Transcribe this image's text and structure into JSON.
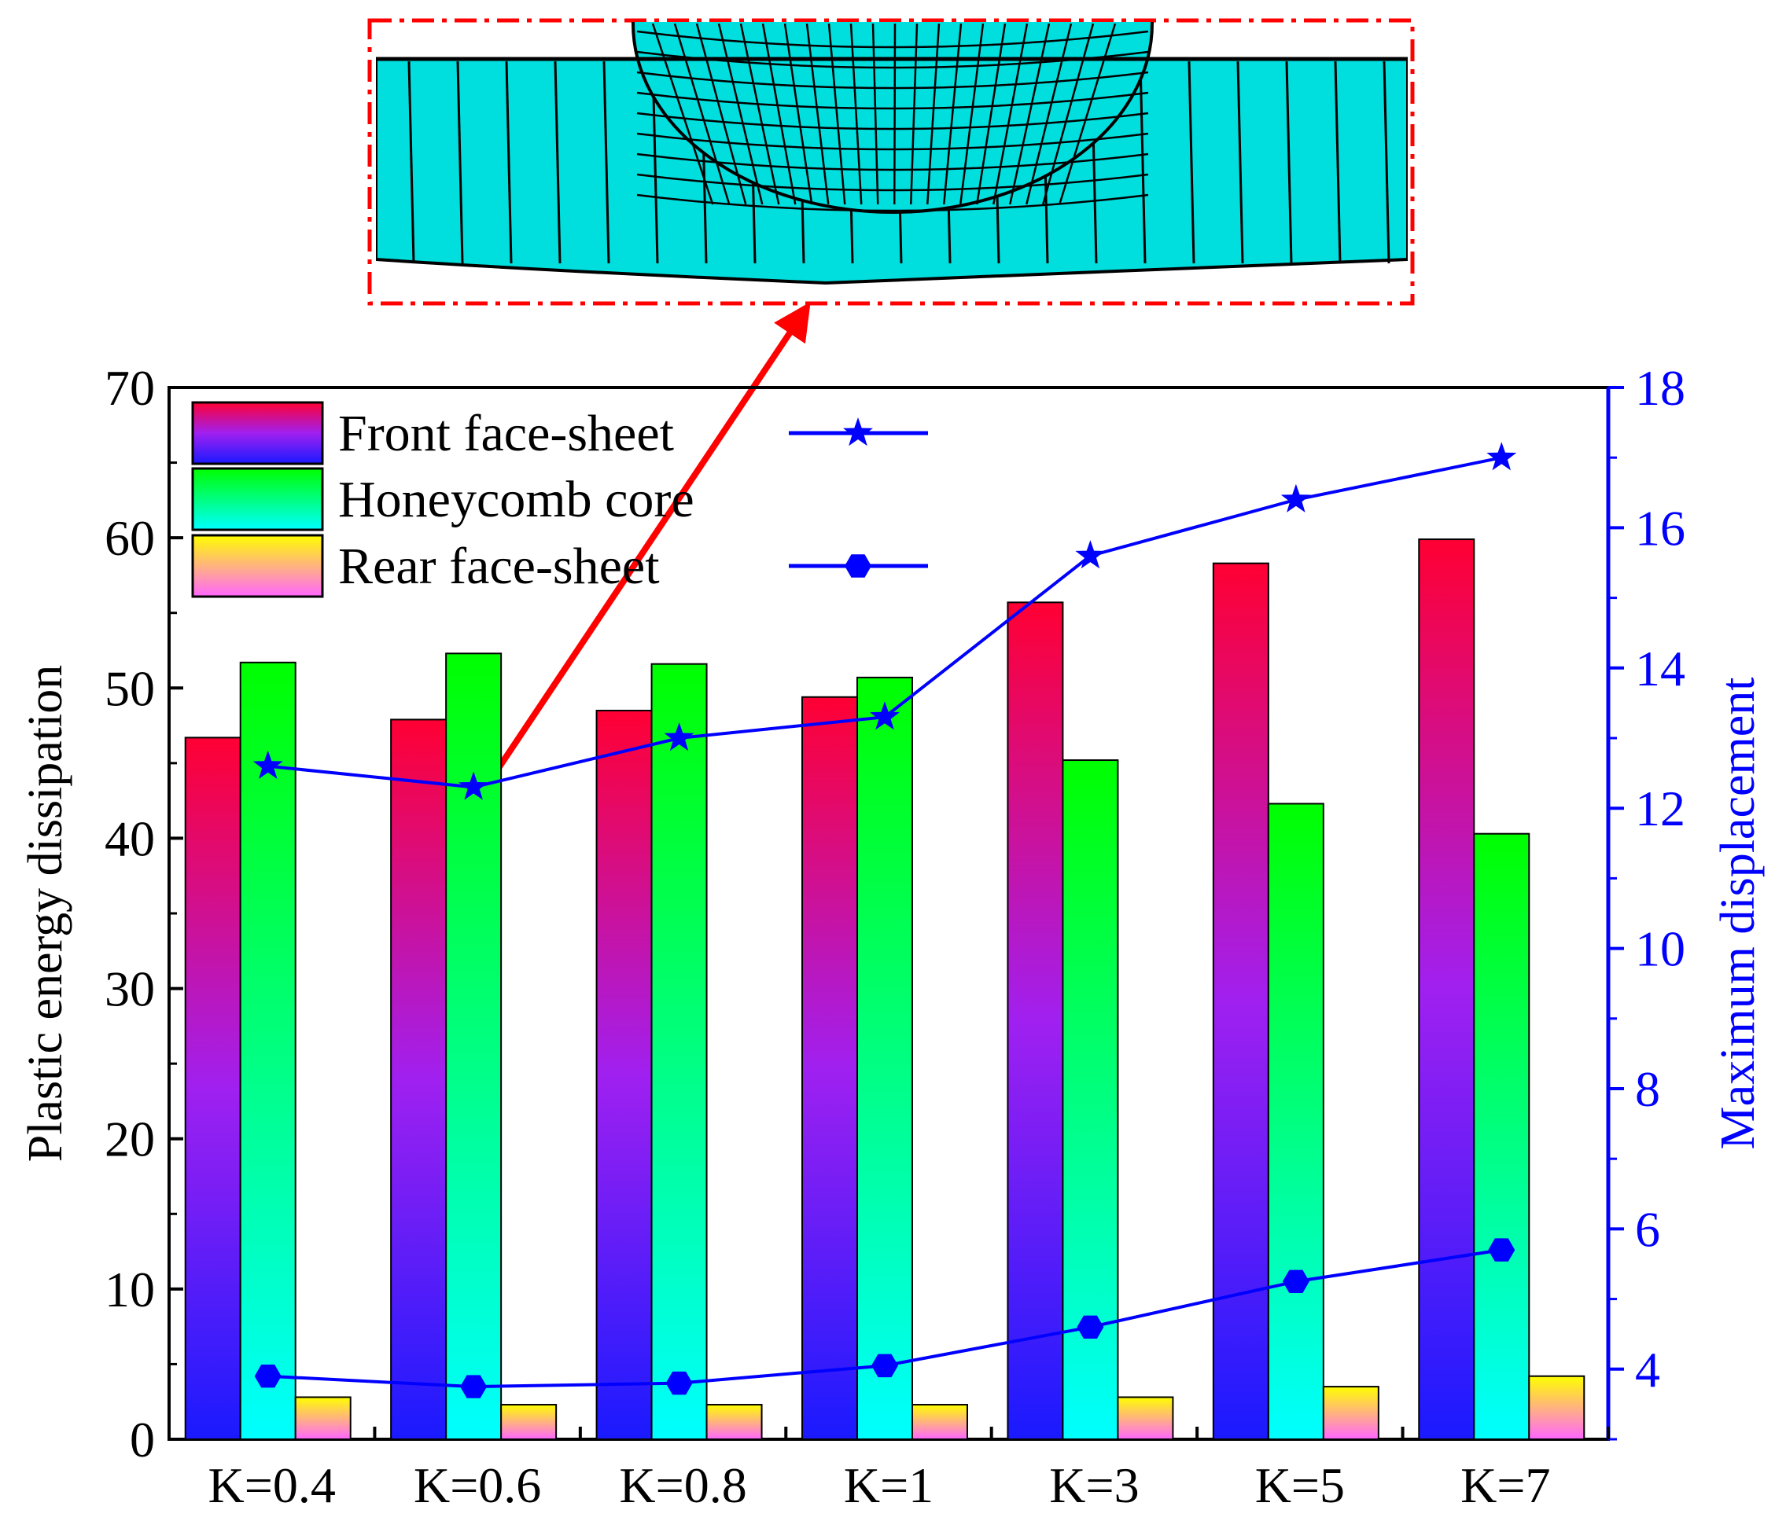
{
  "chart_data": {
    "type": "bar",
    "categories": [
      "K=0.4",
      "K=0.6",
      "K=0.8",
      "K=1",
      "K=3",
      "K=5",
      "K=7"
    ],
    "series": [
      {
        "name": "Front face-sheet",
        "values": [
          46.7,
          47.9,
          48.5,
          49.4,
          55.7,
          58.3,
          59.9
        ]
      },
      {
        "name": "Honeycomb core",
        "values": [
          51.7,
          52.3,
          51.6,
          50.7,
          45.2,
          42.3,
          40.3
        ]
      },
      {
        "name": "Rear face-sheet",
        "values": [
          2.8,
          2.3,
          2.3,
          2.3,
          2.8,
          3.5,
          4.2
        ]
      }
    ],
    "lines": [
      {
        "marker": "star",
        "axis": "right",
        "values": [
          12.6,
          12.3,
          13.0,
          13.3,
          15.6,
          16.4,
          17.0
        ]
      },
      {
        "marker": "hexagon",
        "axis": "right",
        "values": [
          3.9,
          3.75,
          3.8,
          4.05,
          4.6,
          5.25,
          5.7
        ]
      }
    ],
    "xlabel": "",
    "ylabel": "Plastic energy dissipation",
    "ylabel_right": "Maximum displacement",
    "ylim": [
      0,
      70
    ],
    "ylim_right": [
      3,
      18
    ],
    "yticks": [
      "0",
      "10",
      "20",
      "30",
      "40",
      "50",
      "60",
      "70"
    ],
    "yticks_right": [
      "4",
      "6",
      "8",
      "10",
      "12",
      "14",
      "16",
      "18"
    ],
    "legend": "top-left",
    "colors": {
      "front_top": "#ff0033",
      "front_mid": "#a020f0",
      "front_bottom": "#1a1aff",
      "core_top": "#00ff00",
      "core_bottom": "#00ffff",
      "rear_top": "#ffff00",
      "rear_bottom": "#ff66ff",
      "line": "#0000ff",
      "arrow": "#ff0000",
      "inset_border": "#ff0000",
      "inset_fill": "#00e0e0"
    }
  }
}
